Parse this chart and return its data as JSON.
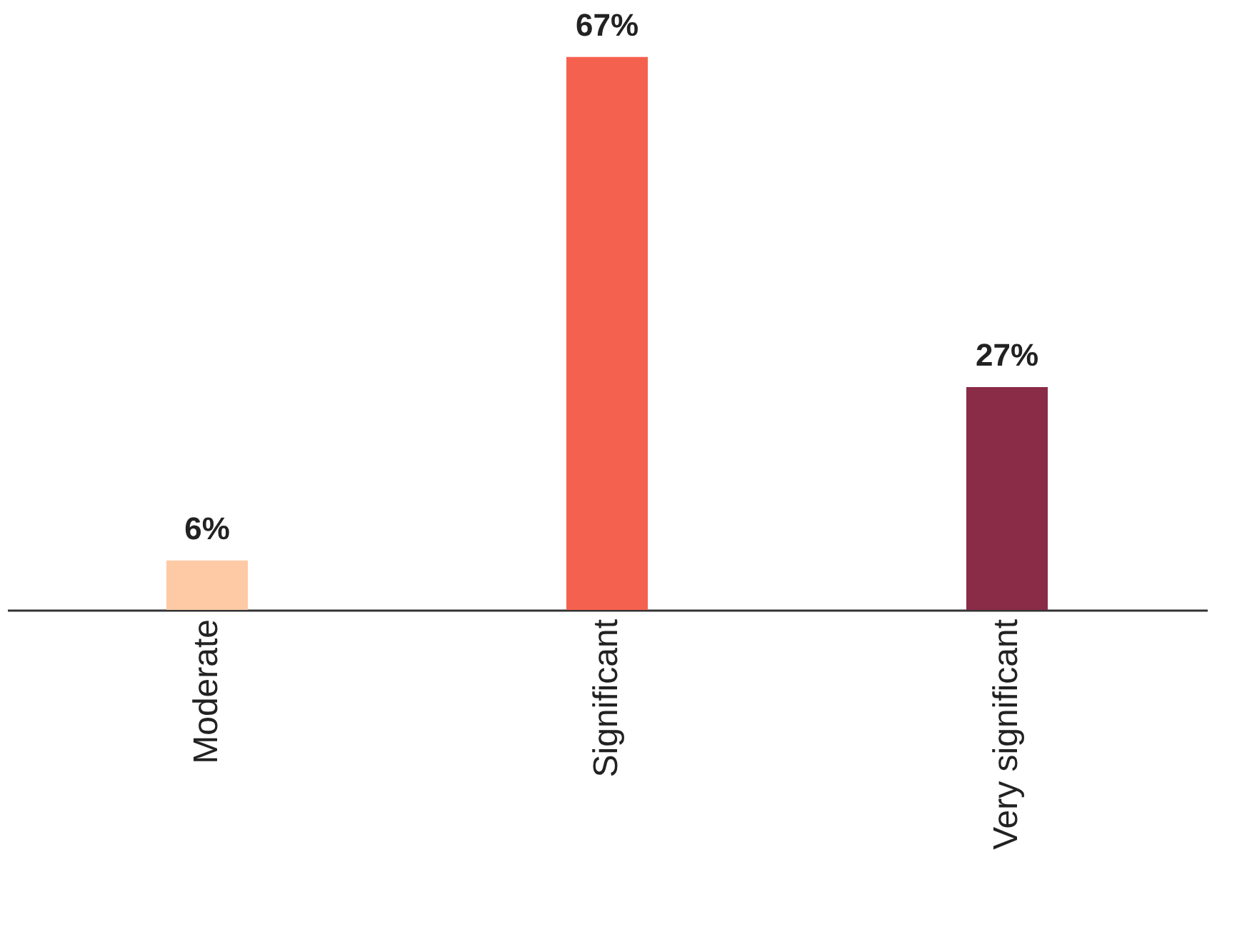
{
  "chart_data": {
    "type": "bar",
    "categories": [
      "Moderate",
      "Significant",
      "Very significant"
    ],
    "values": [
      6,
      67,
      27
    ],
    "colors": [
      "#fdcaa5",
      "#f5614f",
      "#8a2b48"
    ],
    "value_labels": [
      "6%",
      "67%",
      "27%"
    ],
    "grid": false,
    "legend": false
  }
}
